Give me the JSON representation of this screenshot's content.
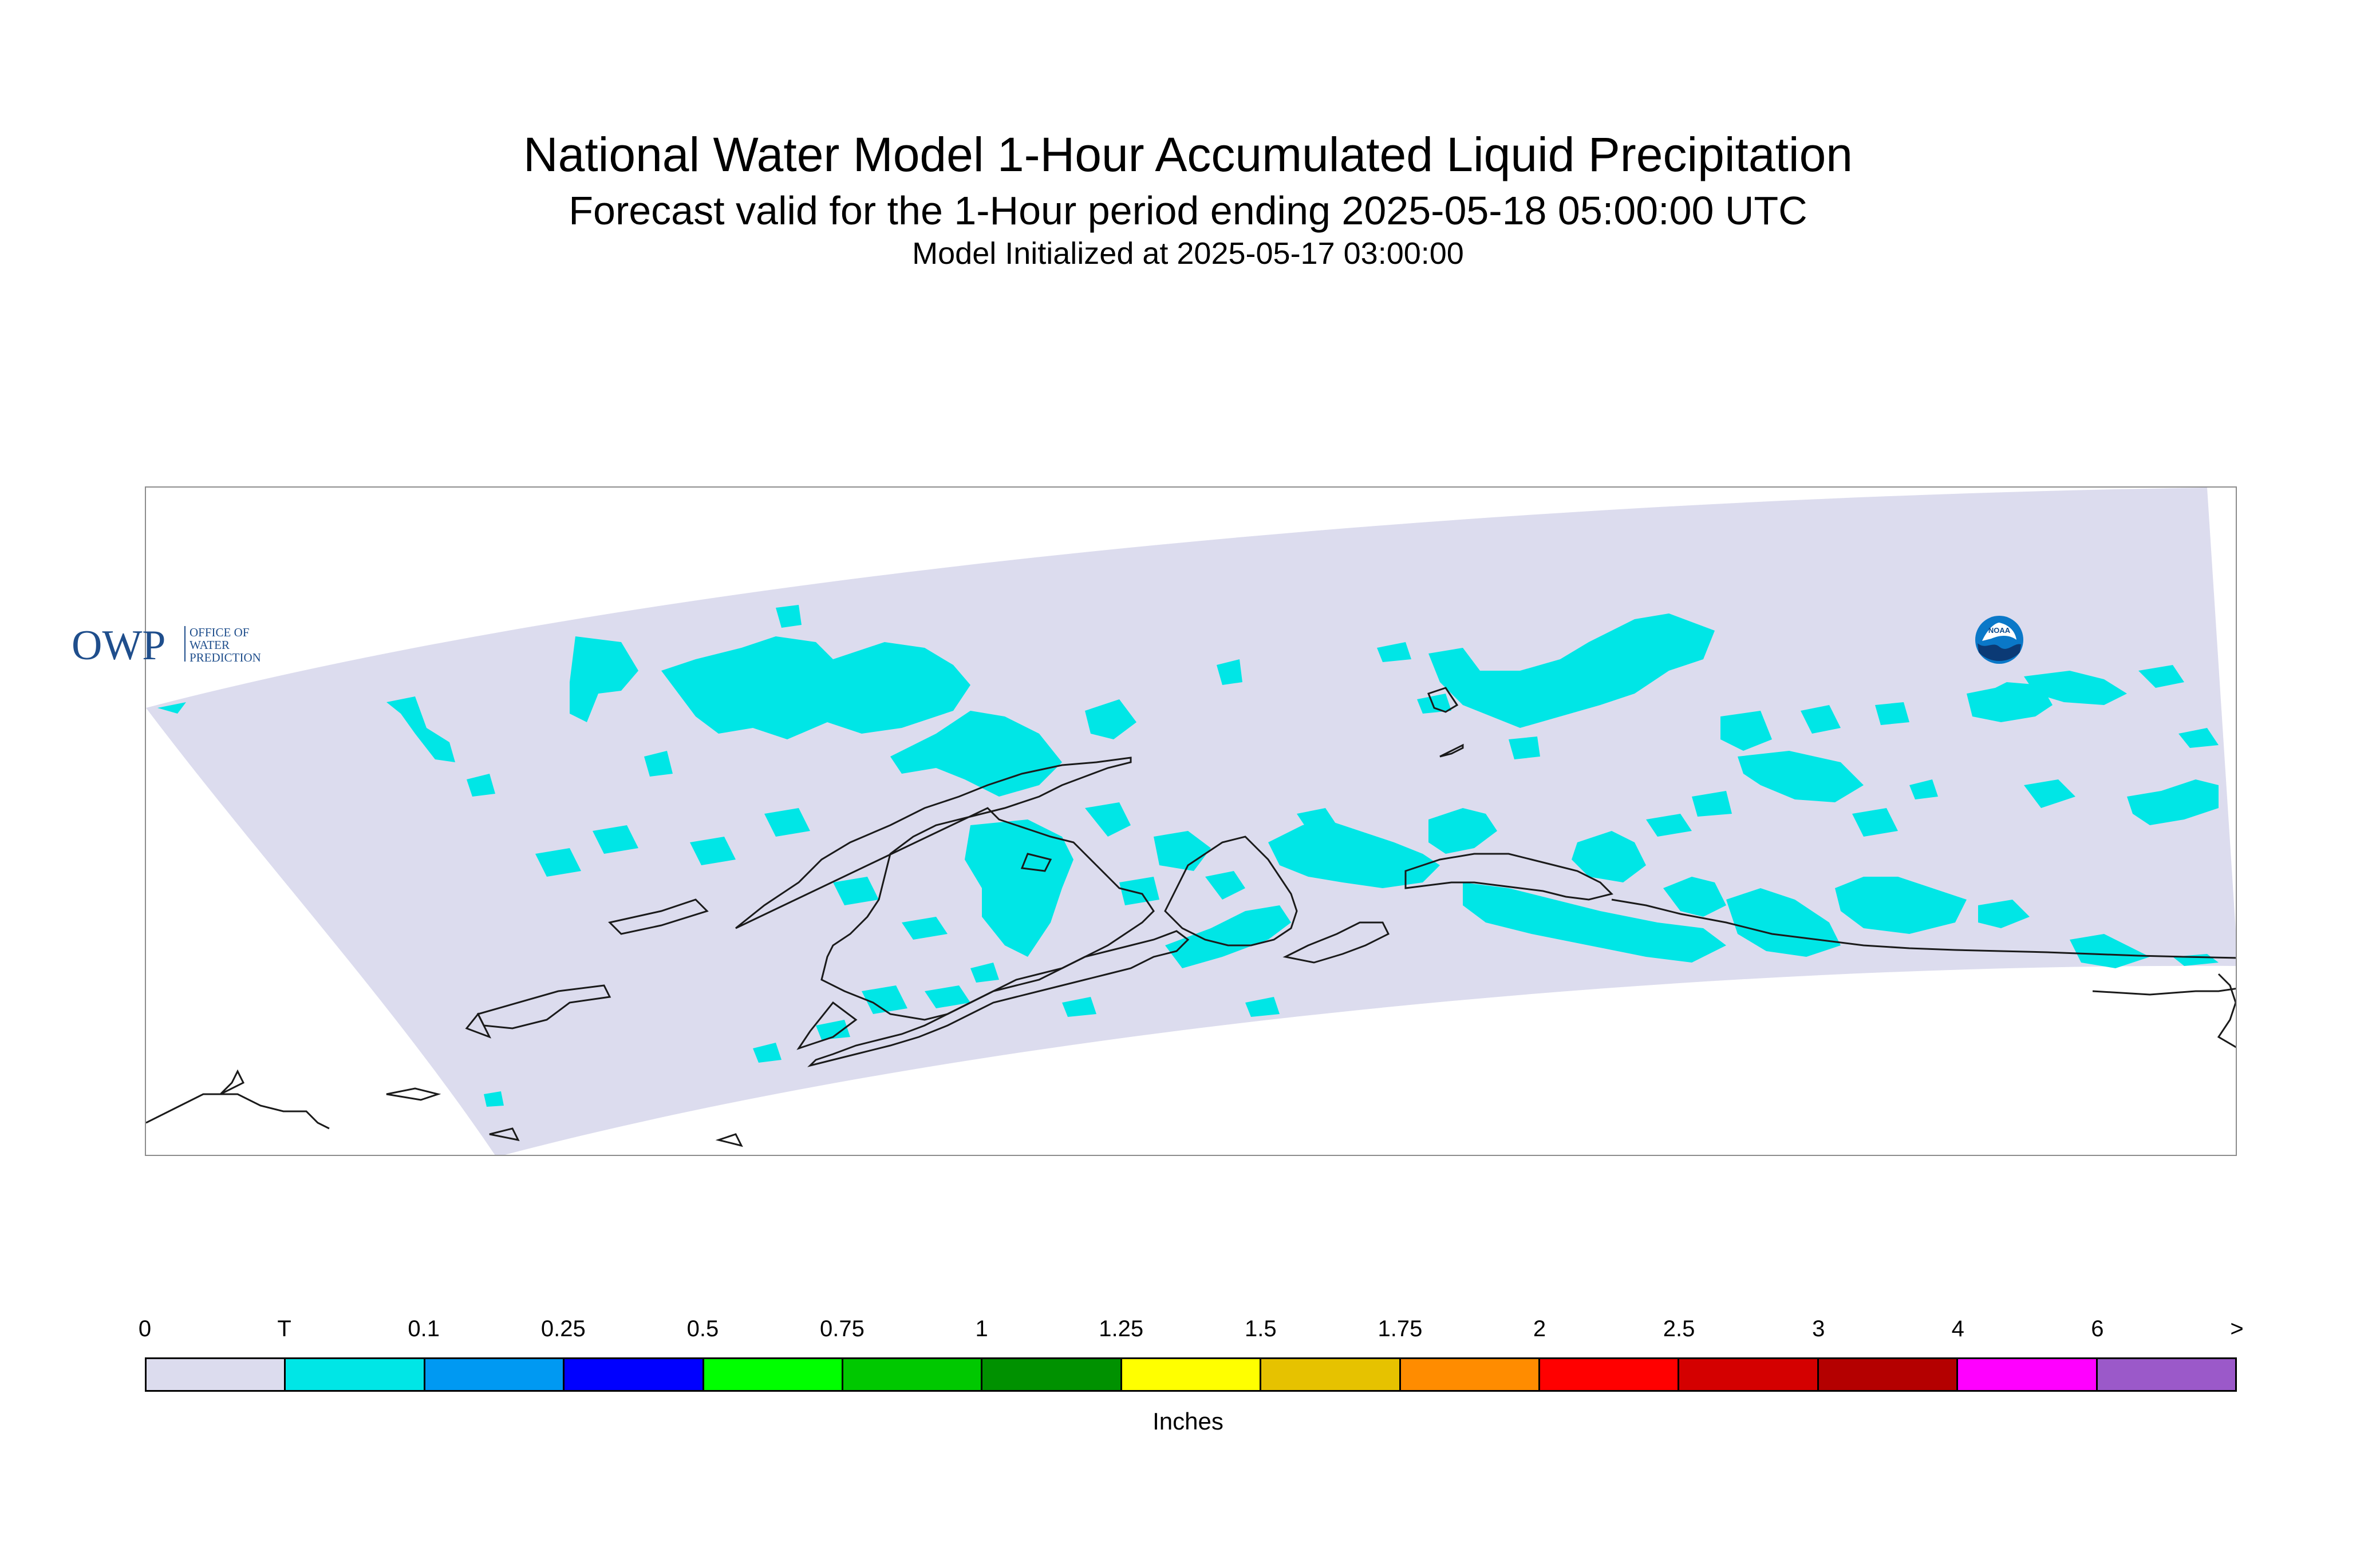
{
  "title": {
    "main": "National Water Model 1-Hour Accumulated Liquid Precipitation",
    "forecast": "Forecast valid for the 1-Hour period ending 2025-05-18 05:00:00 UTC",
    "initialized": "Model Initialized at 2025-05-17 03:00:00"
  },
  "map": {
    "domain_fill": "#dcdcee",
    "precip_color": "#00e6e6",
    "coast_color": "#1a1a1a"
  },
  "logos": {
    "owp_text": "OWP",
    "owp_subtext": [
      "OFFICE OF",
      "WATER",
      "PREDICTION"
    ],
    "noaa_text": "NOAA",
    "owp_color": "#1f4e8c",
    "noaa_color": "#0a78c8"
  },
  "colorbar": {
    "labels": [
      "0",
      "T",
      "0.1",
      "0.25",
      "0.5",
      "0.75",
      "1",
      "1.25",
      "1.5",
      "1.75",
      "2",
      "2.5",
      "3",
      "4",
      "6",
      ">"
    ],
    "colors": [
      "#dcdcee",
      "#00e6e6",
      "#0099f2",
      "#0000ff",
      "#00ff00",
      "#00c800",
      "#009100",
      "#ffff00",
      "#e6c200",
      "#ff8c00",
      "#ff0000",
      "#d40000",
      "#b40000",
      "#ff00ff",
      "#9b59c9"
    ],
    "units": "Inches"
  }
}
